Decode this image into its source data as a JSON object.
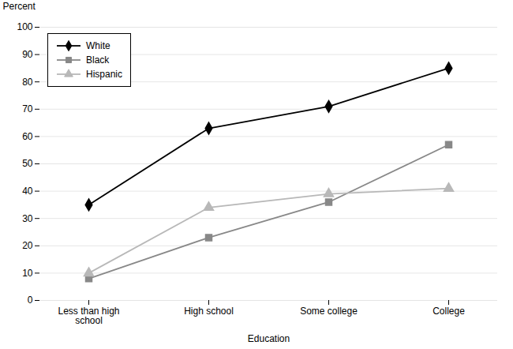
{
  "chart_data": {
    "type": "line",
    "xlabel": "Education",
    "ylabel": "Percent",
    "categories": [
      "Less than high\nschool",
      "High school",
      "Some college",
      "College"
    ],
    "series": [
      {
        "name": "White",
        "color": "#000000",
        "marker": "diamond",
        "line_style": "solid",
        "values": [
          35,
          63,
          71,
          85
        ]
      },
      {
        "name": "Black",
        "color": "#888888",
        "marker": "square",
        "line_style": "solid",
        "values": [
          8,
          23,
          36,
          57
        ]
      },
      {
        "name": "Hispanic",
        "color": "#b8b8b8",
        "marker": "triangle",
        "line_style": "solid",
        "values": [
          10,
          34,
          39,
          41
        ]
      }
    ],
    "ylim": [
      0,
      100
    ],
    "yticks": [
      0,
      10,
      20,
      30,
      40,
      50,
      60,
      70,
      80,
      90,
      100
    ],
    "grid": true,
    "legend": "upper left"
  }
}
